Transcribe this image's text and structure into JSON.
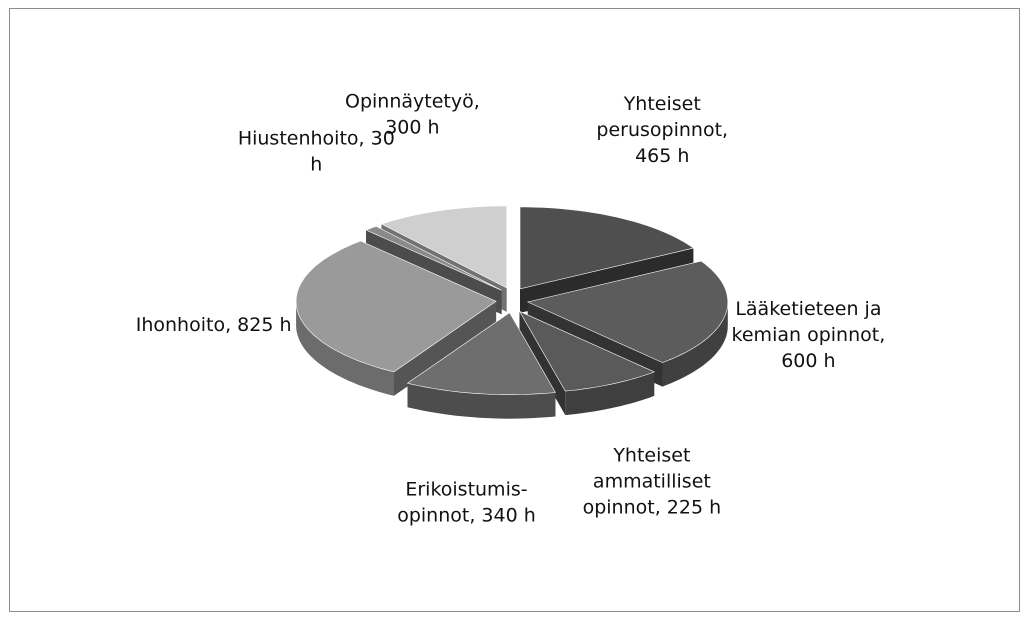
{
  "chart_data": {
    "type": "pie",
    "three_d": true,
    "exploded": true,
    "values": [
      465,
      600,
      225,
      340,
      825,
      30,
      300
    ],
    "value_labels": [
      "Yhteiset perusopinnot, 465 h",
      "Lääketieteen ja kemian opinnot, 600 h",
      "Yhteiset ammatilliset opinnot, 225 h",
      "Erikoistumis-opinnot, 340 h",
      "Ihonhoito, 825 h",
      "Hiustenhoito, 30 h",
      "Opinnäytetyö, 300 h"
    ],
    "colors": [
      "#4f4f4f",
      "#5c5c5c",
      "#5a5a5a",
      "#6e6e6e",
      "#9a9a9a",
      "#8a8a8a",
      "#cfcfcf"
    ],
    "start_angle": 0,
    "direction": "clockwise"
  }
}
